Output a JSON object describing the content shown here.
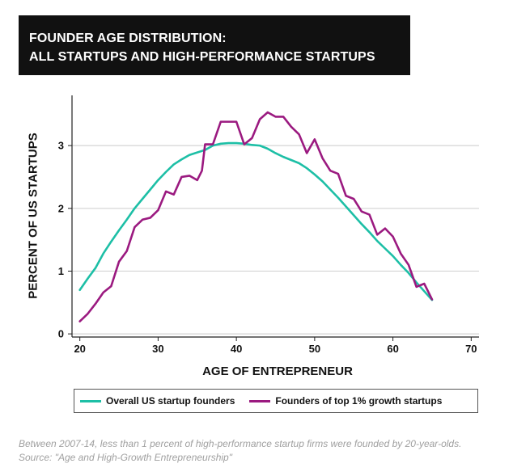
{
  "title": {
    "line1": "FOUNDER AGE DISTRIBUTION:",
    "line2": "ALL STARTUPS AND HIGH-PERFORMANCE STARTUPS"
  },
  "caption": "Between 2007-14, less than 1 percent of high-performance startup firms were founded by 20-year-olds. Source: \"Age and High-Growth Entrepreneurship\"",
  "chart_data": {
    "type": "line",
    "title": "FOUNDER AGE DISTRIBUTION: ALL STARTUPS AND HIGH-PERFORMANCE STARTUPS",
    "xlabel": "AGE OF ENTREPRENEUR",
    "ylabel": "PERCENT OF US STARTUPS",
    "xlim": [
      19,
      71
    ],
    "ylim": [
      -0.05,
      3.8
    ],
    "xticks": [
      20,
      30,
      40,
      50,
      60,
      70
    ],
    "yticks": [
      0,
      1,
      2,
      3
    ],
    "grid": "horizontal",
    "legend_position": "bottom",
    "series": [
      {
        "name": "Overall US startup founders",
        "color": "#1dbfa6",
        "x": [
          20,
          21,
          22,
          23,
          24,
          25,
          26,
          27,
          28,
          29,
          30,
          31,
          32,
          33,
          34,
          35,
          36,
          37,
          38,
          39,
          40,
          41,
          42,
          43,
          44,
          45,
          46,
          47,
          48,
          49,
          50,
          51,
          52,
          53,
          54,
          55,
          56,
          57,
          58,
          59,
          60,
          61,
          62,
          63,
          64,
          65
        ],
        "y": [
          0.7,
          0.88,
          1.05,
          1.28,
          1.47,
          1.65,
          1.82,
          2.0,
          2.15,
          2.3,
          2.45,
          2.58,
          2.7,
          2.78,
          2.85,
          2.89,
          2.93,
          3.0,
          3.03,
          3.04,
          3.04,
          3.03,
          3.01,
          3.0,
          2.95,
          2.88,
          2.82,
          2.77,
          2.72,
          2.64,
          2.54,
          2.43,
          2.3,
          2.17,
          2.03,
          1.89,
          1.75,
          1.62,
          1.48,
          1.36,
          1.24,
          1.1,
          0.97,
          0.82,
          0.68,
          0.54
        ]
      },
      {
        "name": "Founders of top 1% growth startups",
        "color": "#9b1a80",
        "x": [
          20,
          21,
          22,
          23,
          24,
          25,
          26,
          27,
          28,
          29,
          30,
          31,
          32,
          33,
          34,
          35,
          35.6,
          36,
          37,
          38,
          39,
          40,
          41,
          42,
          43,
          44,
          45,
          46,
          47,
          48,
          49,
          50,
          51,
          52,
          53,
          54,
          55,
          56,
          57,
          58,
          59,
          60,
          61,
          62,
          63,
          64,
          65
        ],
        "y": [
          0.2,
          0.32,
          0.48,
          0.66,
          0.76,
          1.15,
          1.32,
          1.7,
          1.82,
          1.85,
          1.97,
          2.27,
          2.22,
          2.5,
          2.52,
          2.45,
          2.6,
          3.02,
          3.02,
          3.38,
          3.38,
          3.38,
          3.02,
          3.12,
          3.42,
          3.53,
          3.46,
          3.46,
          3.3,
          3.18,
          2.88,
          3.1,
          2.8,
          2.6,
          2.55,
          2.2,
          2.15,
          1.95,
          1.9,
          1.58,
          1.68,
          1.55,
          1.28,
          1.1,
          0.75,
          0.8,
          0.55
        ]
      }
    ]
  }
}
